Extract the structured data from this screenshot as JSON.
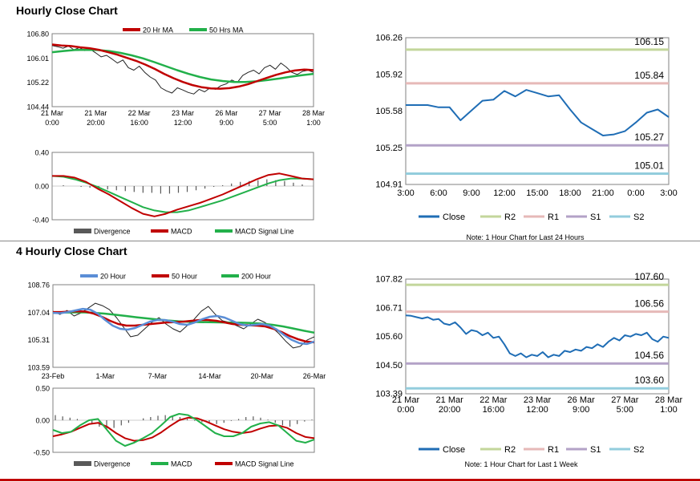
{
  "sections": {
    "hourly_title": "Hourly Close Chart",
    "four_hourly_title": "4 Hourly Close Chart"
  },
  "colors": {
    "close": "#1f6db5",
    "r2": "#c3d69b",
    "r1": "#e6b9b8",
    "s1": "#b3a2c7",
    "s2": "#93cddd",
    "ma_red": "#c00000",
    "ma_green": "#22b04a",
    "ma_blue": "#5b8ed6",
    "divergence": "#595959"
  },
  "chart_data": [
    {
      "id": "hourly_price_ma",
      "type": "line",
      "legend": [
        "20 Hr MA",
        "50 Hrs MA"
      ],
      "yticks": [
        "106.80",
        "106.01",
        "105.22",
        "104.44"
      ],
      "ylim": [
        104.44,
        106.8
      ],
      "xticks": [
        [
          "21 Mar",
          "0:00"
        ],
        [
          "21 Mar",
          "20:00"
        ],
        [
          "22 Mar",
          "16:00"
        ],
        [
          "23 Mar",
          "12:00"
        ],
        [
          "26 Mar",
          "9:00"
        ],
        [
          "27 Mar",
          "5:00"
        ],
        [
          "28 Mar",
          "1:00"
        ]
      ],
      "series": [
        {
          "name": "Close",
          "values": [
            106.42,
            106.38,
            106.33,
            106.4,
            106.28,
            106.35,
            106.25,
            106.3,
            106.18,
            106.05,
            106.1,
            105.98,
            105.85,
            105.95,
            105.7,
            105.62,
            105.75,
            105.55,
            105.4,
            105.3,
            105.05,
            104.95,
            104.88,
            105.05,
            104.98,
            104.9,
            104.85,
            105.0,
            104.92,
            105.05,
            105.0,
            105.12,
            105.18,
            105.3,
            105.22,
            105.45,
            105.55,
            105.62,
            105.5,
            105.7,
            105.78,
            105.65,
            105.85,
            105.72,
            105.55,
            105.48,
            105.58,
            105.62,
            105.55
          ]
        },
        {
          "name": "20 Hr MA",
          "values": [
            106.45,
            106.42,
            106.4,
            106.36,
            106.33,
            106.28,
            106.2,
            106.12,
            106.02,
            105.92,
            105.8,
            105.66,
            105.5,
            105.36,
            105.24,
            105.14,
            105.07,
            105.03,
            105.02,
            105.04,
            105.09,
            105.17,
            105.27,
            105.37,
            105.47,
            105.55,
            105.61,
            105.64,
            105.62
          ]
        },
        {
          "name": "50 Hrs MA",
          "values": [
            106.2,
            106.24,
            106.27,
            106.28,
            106.27,
            106.24,
            106.18,
            106.1,
            106.0,
            105.88,
            105.75,
            105.62,
            105.5,
            105.4,
            105.32,
            105.27,
            105.24,
            105.24,
            105.26,
            105.3,
            105.35,
            105.41,
            105.46,
            105.5
          ]
        }
      ]
    },
    {
      "id": "hourly_macd",
      "type": "line",
      "legend": [
        "Divergence",
        "MACD",
        "MACD Signal Line"
      ],
      "yticks": [
        "0.40",
        "0.00",
        "-0.40"
      ],
      "ylim": [
        -0.4,
        0.4
      ],
      "divergence": [
        0.0,
        0.01,
        0.0,
        -0.01,
        -0.02,
        -0.03,
        -0.04,
        -0.05,
        -0.06,
        -0.07,
        -0.08,
        -0.08,
        -0.09,
        -0.09,
        -0.08,
        -0.07,
        -0.05,
        -0.03,
        -0.01,
        0.01,
        0.03,
        0.05,
        0.06,
        0.07,
        0.08,
        0.07,
        0.06,
        0.04,
        0.02,
        0.0
      ],
      "series": [
        {
          "name": "MACD",
          "values": [
            0.12,
            0.12,
            0.1,
            0.05,
            -0.03,
            -0.1,
            -0.18,
            -0.26,
            -0.33,
            -0.36,
            -0.33,
            -0.28,
            -0.24,
            -0.2,
            -0.15,
            -0.1,
            -0.04,
            0.02,
            0.08,
            0.13,
            0.15,
            0.12,
            0.09,
            0.08
          ]
        },
        {
          "name": "MACD Signal Line",
          "values": [
            0.12,
            0.11,
            0.08,
            0.04,
            -0.01,
            -0.07,
            -0.13,
            -0.19,
            -0.25,
            -0.29,
            -0.31,
            -0.31,
            -0.29,
            -0.25,
            -0.21,
            -0.17,
            -0.12,
            -0.07,
            -0.02,
            0.03,
            0.07,
            0.09,
            0.09,
            0.08
          ]
        }
      ]
    },
    {
      "id": "hourly_close_24h",
      "type": "line",
      "yticks": [
        "106.26",
        "105.92",
        "105.58",
        "105.25",
        "104.91"
      ],
      "ylim": [
        104.91,
        106.26
      ],
      "xticks": [
        "3:00",
        "6:00",
        "9:00",
        "12:00",
        "15:00",
        "18:00",
        "21:00",
        "0:00",
        "3:00"
      ],
      "levels": [
        {
          "name": "R2",
          "value": 106.15,
          "label": "106.15"
        },
        {
          "name": "R1",
          "value": 105.84,
          "label": "105.84"
        },
        {
          "name": "S1",
          "value": 105.27,
          "label": "105.27"
        },
        {
          "name": "S2",
          "value": 105.01,
          "label": "105.01"
        }
      ],
      "series": [
        {
          "name": "Close",
          "x": [
            0,
            1,
            2,
            3,
            4,
            5,
            6,
            7,
            8,
            9,
            10,
            11,
            12,
            13,
            14,
            15,
            16,
            17,
            18,
            19,
            20,
            21,
            22,
            23,
            24
          ],
          "values": [
            105.64,
            105.64,
            105.64,
            105.62,
            105.62,
            105.5,
            105.59,
            105.68,
            105.69,
            105.77,
            105.72,
            105.78,
            105.75,
            105.72,
            105.73,
            105.6,
            105.48,
            105.42,
            105.36,
            105.37,
            105.4,
            105.48,
            105.57,
            105.6,
            105.53
          ]
        }
      ],
      "legend": [
        "Close",
        "R2",
        "R1",
        "S1",
        "S2"
      ],
      "note": "Note: 1 Hour Chart for Last 24 Hours"
    },
    {
      "id": "four_hourly_price_ma",
      "type": "line",
      "legend": [
        "20 Hour",
        "50 Hour",
        "200 Hour"
      ],
      "yticks": [
        "108.76",
        "107.04",
        "105.31",
        "103.59"
      ],
      "ylim": [
        103.59,
        108.76
      ],
      "xticks": [
        "23-Feb",
        "1-Mar",
        "7-Mar",
        "14-Mar",
        "20-Mar",
        "26-Mar"
      ],
      "series": [
        {
          "name": "Close",
          "values": [
            107.1,
            106.9,
            107.15,
            106.8,
            107.0,
            107.3,
            107.6,
            107.45,
            107.2,
            106.7,
            106.1,
            105.5,
            105.6,
            106.0,
            106.4,
            106.7,
            106.3,
            106.0,
            105.8,
            106.2,
            106.6,
            107.1,
            107.4,
            106.9,
            106.5,
            106.4,
            106.2,
            106.0,
            106.3,
            106.6,
            106.4,
            106.1,
            105.7,
            105.2,
            104.8,
            104.9,
            105.3,
            105.5
          ]
        },
        {
          "name": "20 Hour",
          "values": [
            107.0,
            106.98,
            107.05,
            107.15,
            107.25,
            107.2,
            106.95,
            106.55,
            106.2,
            106.0,
            105.95,
            106.05,
            106.25,
            106.45,
            106.55,
            106.55,
            106.45,
            106.3,
            106.25,
            106.4,
            106.6,
            106.75,
            106.8,
            106.7,
            106.5,
            106.3,
            106.2,
            106.25,
            106.3,
            106.2,
            105.95,
            105.6,
            105.3,
            105.1,
            105.05,
            105.2
          ]
        },
        {
          "name": "50 Hour",
          "values": [
            107.05,
            107.05,
            107.08,
            107.1,
            107.08,
            106.95,
            106.75,
            106.5,
            106.3,
            106.2,
            106.2,
            106.25,
            106.3,
            106.35,
            106.4,
            106.42,
            106.45,
            106.5,
            106.55,
            106.55,
            106.5,
            106.4,
            106.3,
            106.25,
            106.22,
            106.2,
            106.15,
            106.0,
            105.8,
            105.55,
            105.35,
            105.2,
            105.15
          ]
        },
        {
          "name": "200 Hour",
          "values": [
            107.0,
            107.02,
            107.03,
            107.03,
            107.0,
            106.95,
            106.88,
            106.8,
            106.72,
            106.65,
            106.58,
            106.52,
            106.47,
            106.44,
            106.42,
            106.41,
            106.4,
            106.39,
            106.38,
            106.36,
            106.32,
            106.25,
            106.15,
            106.02,
            105.88,
            105.76
          ]
        }
      ]
    },
    {
      "id": "four_hourly_macd",
      "type": "line",
      "legend": [
        "Divergence",
        "MACD",
        "MACD Signal Line"
      ],
      "yticks": [
        "0.50",
        "0.00",
        "-0.50"
      ],
      "ylim": [
        -0.5,
        0.5
      ],
      "divergence": [
        0.08,
        0.06,
        0.04,
        0.02,
        0.0,
        -0.05,
        -0.1,
        -0.14,
        -0.12,
        -0.08,
        -0.04,
        0.0,
        0.03,
        0.05,
        0.07,
        0.08,
        0.07,
        0.05,
        0.02,
        -0.01,
        -0.03,
        -0.05,
        -0.06,
        -0.04,
        -0.01,
        0.02,
        0.05,
        0.06,
        0.04,
        0.01,
        -0.04,
        -0.08,
        -0.1,
        -0.06,
        -0.02,
        0.01
      ],
      "series": [
        {
          "name": "MACD",
          "values": [
            -0.15,
            -0.2,
            -0.18,
            -0.08,
            0.0,
            0.02,
            -0.15,
            -0.32,
            -0.4,
            -0.35,
            -0.28,
            -0.2,
            -0.08,
            0.05,
            0.1,
            0.08,
            0.0,
            -0.1,
            -0.2,
            -0.25,
            -0.25,
            -0.2,
            -0.1,
            -0.05,
            -0.03,
            -0.08,
            -0.2,
            -0.32,
            -0.35,
            -0.3
          ]
        },
        {
          "name": "MACD Signal Line",
          "values": [
            -0.25,
            -0.22,
            -0.18,
            -0.12,
            -0.06,
            -0.04,
            -0.1,
            -0.2,
            -0.28,
            -0.32,
            -0.31,
            -0.27,
            -0.19,
            -0.09,
            0.0,
            0.04,
            0.03,
            -0.02,
            -0.08,
            -0.14,
            -0.18,
            -0.2,
            -0.18,
            -0.13,
            -0.09,
            -0.08,
            -0.12,
            -0.2,
            -0.26,
            -0.28
          ]
        }
      ]
    },
    {
      "id": "four_hourly_close_1w",
      "type": "line",
      "yticks": [
        "107.82",
        "106.71",
        "105.60",
        "104.50",
        "103.39"
      ],
      "ylim": [
        103.39,
        107.82
      ],
      "xticks": [
        [
          "21 Mar",
          "0:00"
        ],
        [
          "21 Mar",
          "20:00"
        ],
        [
          "22 Mar",
          "16:00"
        ],
        [
          "23 Mar",
          "12:00"
        ],
        [
          "26 Mar",
          "9:00"
        ],
        [
          "27 Mar",
          "5:00"
        ],
        [
          "28 Mar",
          "1:00"
        ]
      ],
      "levels": [
        {
          "name": "R2",
          "value": 107.6,
          "label": "107.60"
        },
        {
          "name": "R1",
          "value": 106.56,
          "label": "106.56"
        },
        {
          "name": "S1",
          "value": 104.56,
          "label": "104.56"
        },
        {
          "name": "S2",
          "value": 103.6,
          "label": "103.60"
        }
      ],
      "series": [
        {
          "name": "Close",
          "values": [
            106.42,
            106.4,
            106.35,
            106.3,
            106.35,
            106.25,
            106.28,
            106.1,
            106.05,
            106.15,
            105.95,
            105.7,
            105.85,
            105.8,
            105.65,
            105.75,
            105.55,
            105.6,
            105.3,
            104.95,
            104.85,
            104.95,
            104.8,
            104.9,
            104.85,
            105.0,
            104.8,
            104.9,
            104.85,
            105.05,
            105.0,
            105.1,
            105.05,
            105.2,
            105.15,
            105.3,
            105.2,
            105.4,
            105.55,
            105.45,
            105.65,
            105.6,
            105.7,
            105.65,
            105.75,
            105.5,
            105.4,
            105.6,
            105.55
          ]
        }
      ],
      "legend": [
        "Close",
        "R2",
        "R1",
        "S1",
        "S2"
      ],
      "note": "Note: 1 Hour Chart for Last 1 Week"
    }
  ]
}
